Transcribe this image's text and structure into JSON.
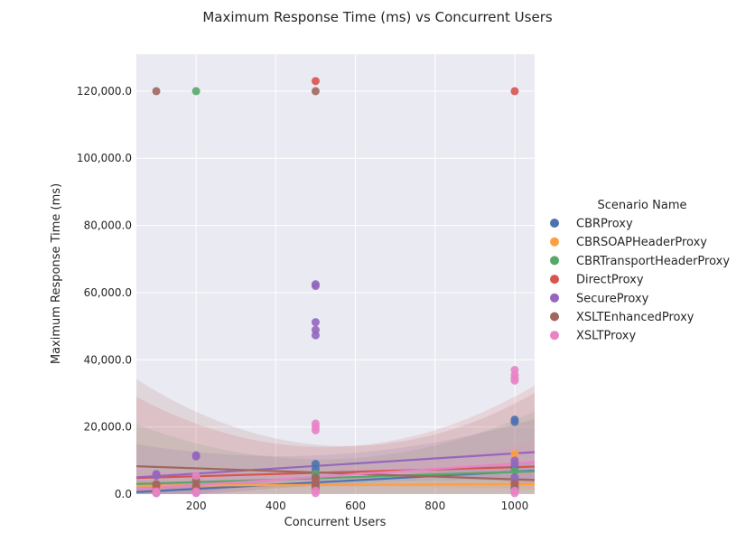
{
  "chart_data": {
    "type": "scatter",
    "title": "Maximum Response Time (ms) vs Concurrent Users",
    "xlabel": "Concurrent Users",
    "ylabel": "Maximum Response Time (ms)",
    "xlim": [
      50,
      1050
    ],
    "ylim": [
      0,
      131000
    ],
    "xticks": [
      200,
      400,
      600,
      800,
      1000
    ],
    "xtick_labels": [
      "200",
      "400",
      "600",
      "800",
      "1000"
    ],
    "yticks": [
      0,
      20000,
      40000,
      60000,
      80000,
      100000,
      120000
    ],
    "ytick_labels": [
      "0.0",
      "20,000.0",
      "40,000.0",
      "60,000.0",
      "80,000.0",
      "100,000.0",
      "120,000.0"
    ],
    "grid": true,
    "legend_title": "Scenario Name",
    "legend_position": "right",
    "series": [
      {
        "name": "CBRProxy",
        "color": "#4c72b0",
        "points": [
          [
            100,
            300
          ],
          [
            100,
            600
          ],
          [
            200,
            500
          ],
          [
            200,
            800
          ],
          [
            500,
            1500
          ],
          [
            500,
            2500
          ],
          [
            500,
            5000
          ],
          [
            500,
            7500
          ],
          [
            500,
            9000
          ],
          [
            1000,
            1000
          ],
          [
            1000,
            3000
          ],
          [
            1000,
            8000
          ],
          [
            1000,
            21500
          ],
          [
            1000,
            22200
          ]
        ],
        "fit": [
          [
            50,
            600
          ],
          [
            1050,
            7000
          ]
        ]
      },
      {
        "name": "CBRSOAPHeaderProxy",
        "color": "#ff9f3f",
        "points": [
          [
            100,
            800
          ],
          [
            100,
            1500
          ],
          [
            200,
            1000
          ],
          [
            200,
            2000
          ],
          [
            500,
            2000
          ],
          [
            500,
            3000
          ],
          [
            500,
            4000
          ],
          [
            1000,
            1500
          ],
          [
            1000,
            3000
          ],
          [
            1000,
            12000
          ]
        ],
        "fit": [
          [
            50,
            2500
          ],
          [
            1050,
            3000
          ]
        ]
      },
      {
        "name": "CBRTransportHeaderProxy",
        "color": "#55a868",
        "points": [
          [
            100,
            500
          ],
          [
            100,
            1000
          ],
          [
            200,
            120000
          ],
          [
            200,
            1500
          ],
          [
            500,
            1500
          ],
          [
            500,
            3000
          ],
          [
            500,
            6000
          ],
          [
            1000,
            2000
          ],
          [
            1000,
            5000
          ],
          [
            1000,
            7000
          ]
        ],
        "fit": [
          [
            50,
            3000
          ],
          [
            1050,
            6800
          ]
        ]
      },
      {
        "name": "DirectProxy",
        "color": "#d9534f",
        "points": [
          [
            100,
            1000
          ],
          [
            100,
            2500
          ],
          [
            200,
            1000
          ],
          [
            200,
            2000
          ],
          [
            500,
            123000
          ],
          [
            500,
            2000
          ],
          [
            500,
            4000
          ],
          [
            1000,
            120000
          ],
          [
            1000,
            1500
          ],
          [
            1000,
            3500
          ]
        ],
        "fit": [
          [
            50,
            4800
          ],
          [
            1050,
            8200
          ]
        ]
      },
      {
        "name": "SecureProxy",
        "color": "#9467bd",
        "points": [
          [
            100,
            5500
          ],
          [
            100,
            6000
          ],
          [
            200,
            11200
          ],
          [
            200,
            11600
          ],
          [
            500,
            47300
          ],
          [
            500,
            48900
          ],
          [
            500,
            51200
          ],
          [
            500,
            62000
          ],
          [
            500,
            62500
          ],
          [
            500,
            3000
          ],
          [
            1000,
            9000
          ],
          [
            1000,
            10000
          ],
          [
            1000,
            2000
          ],
          [
            1000,
            5000
          ]
        ],
        "fit": [
          [
            50,
            5000
          ],
          [
            1050,
            12500
          ]
        ]
      },
      {
        "name": "XSLTEnhancedProxy",
        "color": "#a0675f",
        "points": [
          [
            100,
            120000
          ],
          [
            100,
            3000
          ],
          [
            200,
            2500
          ],
          [
            200,
            4000
          ],
          [
            500,
            120000
          ],
          [
            500,
            3000
          ],
          [
            500,
            5000
          ],
          [
            1000,
            1500
          ],
          [
            1000,
            3000
          ]
        ],
        "fit": [
          [
            50,
            8300
          ],
          [
            1050,
            4200
          ]
        ]
      },
      {
        "name": "XSLTProxy",
        "color": "#e883c6",
        "points": [
          [
            100,
            300
          ],
          [
            100,
            800
          ],
          [
            200,
            300
          ],
          [
            200,
            800
          ],
          [
            200,
            5500
          ],
          [
            500,
            300
          ],
          [
            500,
            1000
          ],
          [
            500,
            19000
          ],
          [
            500,
            20000
          ],
          [
            500,
            21000
          ],
          [
            1000,
            300
          ],
          [
            1000,
            1000
          ],
          [
            1000,
            33800
          ],
          [
            1000,
            34500
          ],
          [
            1000,
            35500
          ],
          [
            1000,
            37000
          ]
        ],
        "fit": [
          [
            50,
            1500
          ],
          [
            1050,
            9500
          ]
        ]
      }
    ]
  }
}
